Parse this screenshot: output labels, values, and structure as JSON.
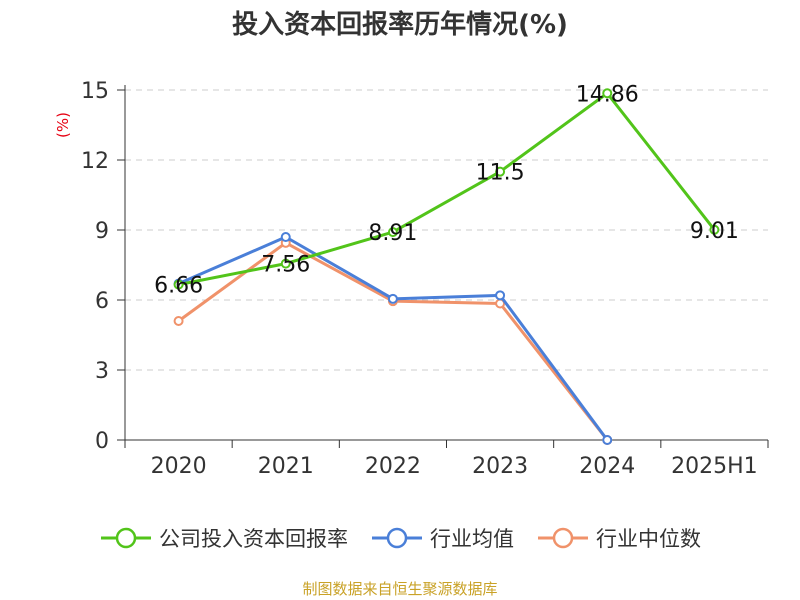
{
  "chart_data": {
    "type": "line",
    "title": "投入资本回报率历年情况(%)",
    "ylabel": "(%)",
    "xlabel": "",
    "categories": [
      "2020",
      "2021",
      "2022",
      "2023",
      "2024",
      "2025H1"
    ],
    "ylim": [
      0,
      15
    ],
    "yticks": [
      0,
      3,
      6,
      9,
      12,
      15
    ],
    "grid": true,
    "legend_position": "bottom",
    "series": [
      {
        "name": "公司投入资本回报率",
        "color": "#52c41a",
        "values": [
          6.66,
          7.56,
          8.91,
          11.5,
          14.86,
          9.01
        ],
        "labels": [
          "6.66",
          "7.56",
          "8.91",
          "11.5",
          "14.86",
          "9.01"
        ]
      },
      {
        "name": "行业均值",
        "color": "#4a7fd8",
        "values": [
          6.7,
          8.7,
          6.05,
          6.2,
          0,
          null
        ]
      },
      {
        "name": "行业中位数",
        "color": "#f0926a",
        "values": [
          5.1,
          8.45,
          5.95,
          5.85,
          0,
          null
        ]
      }
    ]
  },
  "source_note": "制图数据来自恒生聚源数据库",
  "colors": {
    "axis": "#333333",
    "grid": "#cccccc",
    "ylabel": "#e60012",
    "source": "#c9a227"
  }
}
